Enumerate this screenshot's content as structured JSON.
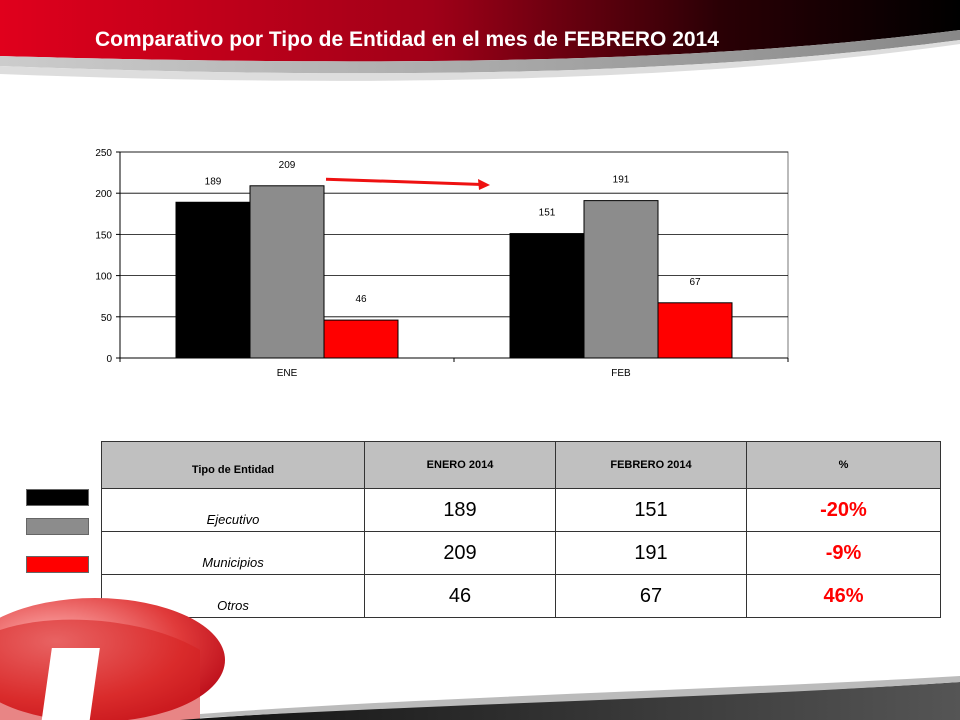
{
  "header": {
    "title": "Comparativo por Tipo de Entidad en el mes de FEBRERO 2014"
  },
  "colors": {
    "ejecutivo": "#000000",
    "municipios": "#8c8c8c",
    "otros": "#ff0000",
    "banner_red": "#c8001a",
    "arrow": "#ee1111"
  },
  "chart_data": {
    "type": "bar",
    "title": "",
    "xlabel": "",
    "ylabel": "",
    "categories": [
      "ENE",
      "FEB"
    ],
    "ylim": [
      0,
      250
    ],
    "yticks": [
      0,
      50,
      100,
      150,
      200,
      250
    ],
    "grid": true,
    "legend": "none",
    "series": [
      {
        "values": [
          189,
          151
        ],
        "color": "#000000"
      },
      {
        "values": [
          209,
          191
        ],
        "color": "#8c8c8c"
      },
      {
        "values": [
          46,
          67
        ],
        "color": "#ff0000"
      }
    ],
    "annotation": "red arrow from ENE grey bar toward FEB grey bar indicating decrease"
  },
  "table": {
    "headers": [
      "Tipo de Entidad",
      "ENERO  2014",
      "FEBRERO  2014",
      "%"
    ],
    "rows": [
      {
        "entity": "Ejecutivo",
        "enero": "189",
        "febrero": "151",
        "pct": "-20%"
      },
      {
        "entity": "Municipios",
        "enero": "209",
        "febrero": "191",
        "pct": "-9%"
      },
      {
        "entity": "Otros",
        "enero": "46",
        "febrero": "67",
        "pct": "46%"
      }
    ]
  }
}
